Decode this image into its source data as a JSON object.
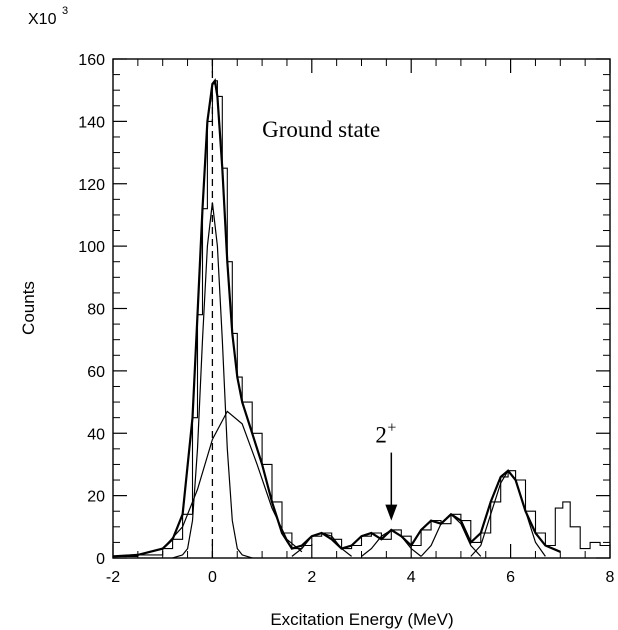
{
  "chart_data": {
    "type": "line",
    "title": "",
    "xlabel": "Excitation Energy (MeV)",
    "ylabel": "Counts",
    "y_multiplier_label": "X10",
    "y_multiplier_exponent": "3",
    "xlim": [
      -2,
      8
    ],
    "ylim": [
      0,
      160
    ],
    "x_ticks": [
      -2,
      0,
      2,
      4,
      6,
      8
    ],
    "x_tick_labels": [
      "-2",
      "0",
      "2",
      "4",
      "6",
      "8"
    ],
    "y_ticks": [
      0,
      20,
      40,
      60,
      80,
      100,
      120,
      140,
      160
    ],
    "y_tick_labels": [
      "0",
      "20",
      "40",
      "60",
      "80",
      "100",
      "120",
      "140",
      "160"
    ],
    "grid": false,
    "annotations": [
      {
        "text": "Ground state",
        "x": 1.0,
        "y": 135
      },
      {
        "text": "2",
        "superscript": "+",
        "x": 3.6,
        "y": 37,
        "arrow_to": [
          3.6,
          12
        ]
      }
    ],
    "reference_line": {
      "style": "dashed",
      "x": 0
    },
    "series": [
      {
        "style": "histogram",
        "x": [
          -2.0,
          -1.5,
          -1.0,
          -0.8,
          -0.6,
          -0.4,
          -0.3,
          -0.2,
          -0.1,
          0.0,
          0.05,
          0.1,
          0.2,
          0.3,
          0.4,
          0.5,
          0.6,
          0.8,
          1.0,
          1.2,
          1.4,
          1.6,
          1.8,
          2.0,
          2.2,
          2.4,
          2.6,
          2.8,
          3.0,
          3.2,
          3.4,
          3.6,
          3.8,
          4.0,
          4.2,
          4.4,
          4.6,
          4.8,
          5.0,
          5.2,
          5.4,
          5.6,
          5.8,
          5.95,
          6.1,
          6.3,
          6.5,
          6.7,
          6.9,
          7.05,
          7.2,
          7.4,
          7.6,
          7.7,
          7.8,
          8.0
        ],
        "y": [
          0.5,
          1,
          3,
          6,
          14,
          45,
          78,
          112,
          140,
          152,
          153,
          148,
          125,
          95,
          72,
          58,
          50,
          40,
          30,
          18,
          8,
          3,
          4,
          7,
          8,
          6,
          3,
          4,
          7,
          8,
          6,
          9,
          7,
          4,
          9,
          12,
          11,
          14,
          12,
          5,
          8,
          18,
          26,
          28,
          25,
          15,
          8,
          4,
          16,
          18,
          10,
          3,
          5,
          5,
          4,
          3
        ]
      },
      {
        "style": "fit-total",
        "x": [
          -2.0,
          -1.5,
          -1.0,
          -0.8,
          -0.6,
          -0.4,
          -0.3,
          -0.2,
          -0.1,
          0.0,
          0.05,
          0.1,
          0.2,
          0.3,
          0.4,
          0.5,
          0.6,
          0.8,
          1.0,
          1.2,
          1.4,
          1.6,
          1.8,
          2.0,
          2.2,
          2.4,
          2.6,
          2.8,
          3.0,
          3.2,
          3.4,
          3.6,
          3.8,
          4.0,
          4.2,
          4.4,
          4.6,
          4.8,
          5.0,
          5.2,
          5.4,
          5.6,
          5.8,
          5.95,
          6.1,
          6.3,
          6.5,
          6.7,
          7.0
        ],
        "y": [
          0.5,
          1,
          3,
          6,
          14,
          45,
          78,
          112,
          140,
          152,
          153,
          148,
          125,
          95,
          72,
          58,
          50,
          40,
          30,
          18,
          8,
          3,
          4,
          7,
          8,
          6,
          3,
          4,
          7,
          8,
          6,
          9,
          7,
          4,
          9,
          12,
          11,
          14,
          12,
          5,
          8,
          18,
          26,
          28,
          25,
          15,
          8,
          4,
          2
        ]
      },
      {
        "style": "fit-component",
        "x": [
          -0.8,
          -0.6,
          -0.5,
          -0.4,
          -0.3,
          -0.2,
          -0.1,
          0.0,
          0.1,
          0.2,
          0.3,
          0.4,
          0.5,
          0.6,
          0.8
        ],
        "y": [
          0,
          1,
          3,
          12,
          35,
          70,
          100,
          114,
          100,
          70,
          35,
          12,
          3,
          1,
          0
        ]
      },
      {
        "style": "fit-component",
        "x": [
          -2.0,
          -1.5,
          -1.0,
          -0.6,
          -0.3,
          0.0,
          0.3,
          0.6,
          0.9,
          1.2,
          1.5,
          1.8
        ],
        "y": [
          0.5,
          1,
          3,
          10,
          22,
          38,
          47,
          43,
          30,
          16,
          6,
          2
        ]
      },
      {
        "style": "fit-component",
        "x": [
          1.6,
          1.8,
          2.0,
          2.2,
          2.4,
          2.6,
          2.8
        ],
        "y": [
          0.5,
          3,
          7,
          8,
          7,
          3,
          0.5
        ]
      },
      {
        "style": "fit-component",
        "x": [
          3.0,
          3.2,
          3.4,
          3.6,
          3.8,
          4.0,
          4.2
        ],
        "y": [
          0.5,
          3,
          7,
          9,
          7,
          3,
          0.5
        ]
      },
      {
        "style": "fit-component",
        "x": [
          4.2,
          4.4,
          4.6,
          4.8,
          5.0,
          5.2,
          5.4
        ],
        "y": [
          0.5,
          4,
          11,
          14,
          11,
          4,
          0.5
        ]
      },
      {
        "style": "fit-component",
        "x": [
          5.2,
          5.4,
          5.6,
          5.8,
          5.95,
          6.1,
          6.3,
          6.5,
          6.7
        ],
        "y": [
          0.5,
          4,
          14,
          24,
          28,
          25,
          15,
          5,
          0.5
        ]
      }
    ]
  }
}
